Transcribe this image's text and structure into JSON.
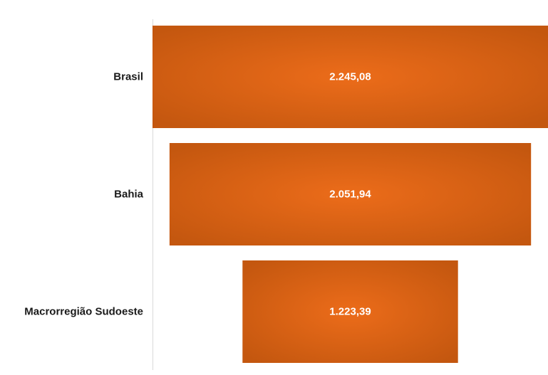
{
  "chart_data": {
    "type": "bar",
    "subtype": "funnel",
    "categories": [
      "Brasil",
      "Bahia",
      "Macrorregião Sudoeste"
    ],
    "values": [
      2245.08,
      2051.94,
      1223.39
    ],
    "value_labels": [
      "2.245,08",
      "2.051,94",
      "1.223,39"
    ],
    "bar_color": "#e8671a",
    "bar_edge_color": "#c4570f",
    "title": "",
    "xlabel": "",
    "ylabel": ""
  }
}
